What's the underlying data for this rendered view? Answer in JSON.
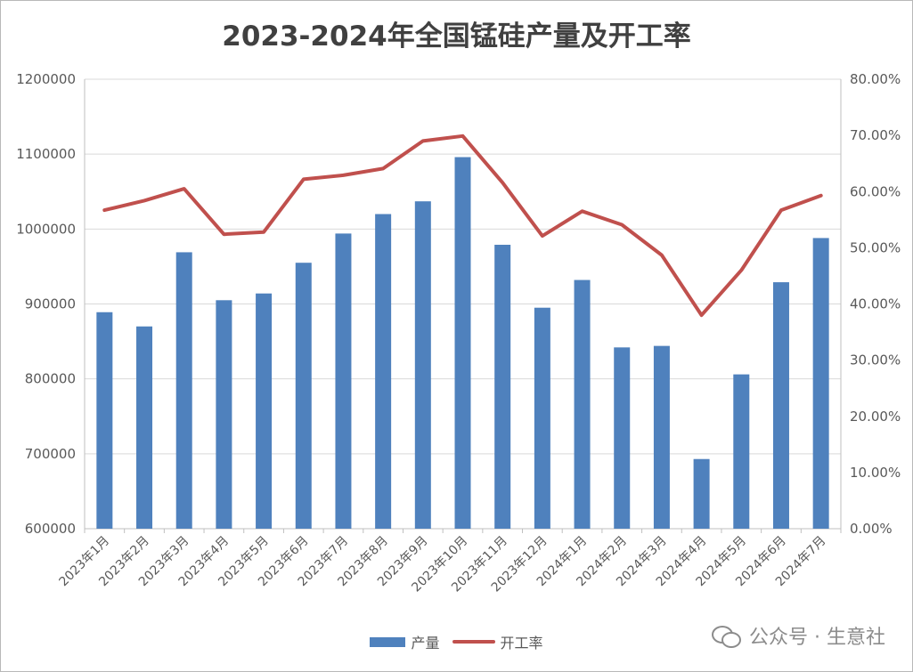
{
  "chart_data": {
    "type": "bar",
    "title": "2023-2024年全国锰硅产量及开工率",
    "categories": [
      "2023年1月",
      "2023年2月",
      "2023年3月",
      "2023年4月",
      "2023年5月",
      "2023年6月",
      "2023年7月",
      "2023年8月",
      "2023年9月",
      "2023年10月",
      "2023年11月",
      "2023年12月",
      "2024年1月",
      "2024年2月",
      "2024年3月",
      "2024年4月",
      "2024年5月",
      "2024年6月",
      "2024年7月"
    ],
    "series": [
      {
        "name": "产量",
        "type": "bar",
        "axis": "left",
        "color": "#4f81bd",
        "values": [
          889000,
          870000,
          969000,
          905000,
          914000,
          955000,
          994000,
          1020000,
          1037000,
          1096000,
          979000,
          895000,
          932000,
          842000,
          844000,
          693000,
          806000,
          929000,
          988000
        ]
      },
      {
        "name": "开工率",
        "type": "line",
        "axis": "right",
        "color": "#c0504d",
        "values": [
          0.567,
          0.584,
          0.605,
          0.524,
          0.528,
          0.622,
          0.629,
          0.641,
          0.69,
          0.699,
          0.616,
          0.521,
          0.565,
          0.541,
          0.487,
          0.38,
          0.46,
          0.567,
          0.593
        ]
      }
    ],
    "y_left": {
      "min": 600000,
      "max": 1200000,
      "ticks": [
        "600000",
        "700000",
        "800000",
        "900000",
        "1000000",
        "1100000",
        "1200000"
      ]
    },
    "y_right": {
      "min": 0,
      "max": 0.8,
      "ticks": [
        "0.00%",
        "10.00%",
        "20.00%",
        "30.00%",
        "40.00%",
        "50.00%",
        "60.00%",
        "70.00%",
        "80.00%"
      ]
    },
    "grid": true,
    "legend_position": "bottom"
  },
  "watermark": {
    "text": "公众号 · 生意社",
    "icon": "wechat-icon"
  }
}
